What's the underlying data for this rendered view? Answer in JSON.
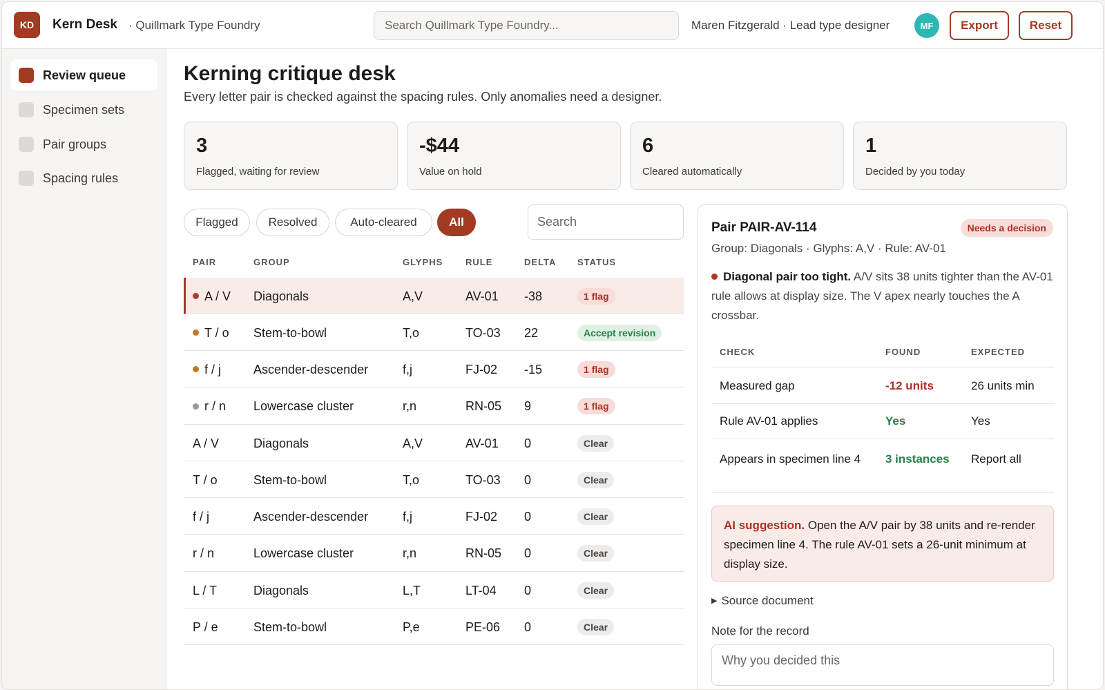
{
  "topbar": {
    "logo": "KD",
    "app_name": "Kern Desk",
    "org_name": "· Quillmark Type Foundry",
    "search_placeholder": "Search Quillmark Type Foundry...",
    "user_label": "Maren Fitzgerald · Lead type designer",
    "avatar": "MF",
    "export_label": "Export",
    "reset_label": "Reset"
  },
  "sidebar": {
    "items": [
      {
        "label": "Review queue",
        "active": true
      },
      {
        "label": "Specimen sets",
        "active": false
      },
      {
        "label": "Pair groups",
        "active": false
      },
      {
        "label": "Spacing rules",
        "active": false
      }
    ]
  },
  "page": {
    "title": "Kerning critique desk",
    "subtitle": "Every letter pair is checked against the spacing rules. Only anomalies need a designer."
  },
  "stats": [
    {
      "value": "3",
      "label": "Flagged, waiting for review"
    },
    {
      "value": "-$44",
      "label": "Value on hold"
    },
    {
      "value": "6",
      "label": "Cleared automatically"
    },
    {
      "value": "1",
      "label": "Decided by you today"
    }
  ],
  "filters": {
    "chips": [
      "Flagged",
      "Resolved",
      "Auto-cleared",
      "All"
    ],
    "active": "All",
    "search_placeholder": "Search"
  },
  "table": {
    "headers": [
      "PAIR",
      "GROUP",
      "GLYPHS",
      "RULE",
      "DELTA",
      "STATUS"
    ],
    "rows": [
      {
        "pair": "A / V",
        "group": "Diagonals",
        "glyphs": "A,V",
        "rule": "AV-01",
        "delta": "-38",
        "status": "1 flag",
        "status_kind": "flag",
        "dot": "#b03a2a",
        "selected": true
      },
      {
        "pair": "T / o",
        "group": "Stem-to-bowl",
        "glyphs": "T,o",
        "rule": "TO-03",
        "delta": "22",
        "status": "Accept revision",
        "status_kind": "accept",
        "dot": "#c07a2c",
        "selected": false
      },
      {
        "pair": "f / j",
        "group": "Ascender-descender",
        "glyphs": "f,j",
        "rule": "FJ-02",
        "delta": "-15",
        "status": "1 flag",
        "status_kind": "flag",
        "dot": "#c07a2c",
        "selected": false
      },
      {
        "pair": "r / n",
        "group": "Lowercase cluster",
        "glyphs": "r,n",
        "rule": "RN-05",
        "delta": "9",
        "status": "1 flag",
        "status_kind": "flag",
        "dot": "#9a98a6",
        "selected": false
      },
      {
        "pair": "A / V",
        "group": "Diagonals",
        "glyphs": "A,V",
        "rule": "AV-01",
        "delta": "0",
        "status": "Clear",
        "status_kind": "clear",
        "dot": "",
        "selected": false
      },
      {
        "pair": "T / o",
        "group": "Stem-to-bowl",
        "glyphs": "T,o",
        "rule": "TO-03",
        "delta": "0",
        "status": "Clear",
        "status_kind": "clear",
        "dot": "",
        "selected": false
      },
      {
        "pair": "f / j",
        "group": "Ascender-descender",
        "glyphs": "f,j",
        "rule": "FJ-02",
        "delta": "0",
        "status": "Clear",
        "status_kind": "clear",
        "dot": "",
        "selected": false
      },
      {
        "pair": "r / n",
        "group": "Lowercase cluster",
        "glyphs": "r,n",
        "rule": "RN-05",
        "delta": "0",
        "status": "Clear",
        "status_kind": "clear",
        "dot": "",
        "selected": false
      },
      {
        "pair": "L / T",
        "group": "Diagonals",
        "glyphs": "L,T",
        "rule": "LT-04",
        "delta": "0",
        "status": "Clear",
        "status_kind": "clear",
        "dot": "",
        "selected": false
      },
      {
        "pair": "P / e",
        "group": "Stem-to-bowl",
        "glyphs": "P,e",
        "rule": "PE-06",
        "delta": "0",
        "status": "Clear",
        "status_kind": "clear",
        "dot": "",
        "selected": false
      }
    ]
  },
  "detail": {
    "title": "Pair PAIR-AV-114",
    "badge": "Needs a decision",
    "meta": "Group: Diagonals · Glyphs: A,V · Rule: AV-01",
    "headline": "Diagonal pair too tight.",
    "description": "A/V sits 38 units tighter than the AV-01 rule allows at display size. The V apex nearly touches the A crossbar.",
    "check_headers": [
      "CHECK",
      "FOUND",
      "EXPECTED"
    ],
    "checks": [
      {
        "check": "Measured gap",
        "found": "-12 units",
        "found_kind": "red",
        "expected": "26 units min"
      },
      {
        "check": "Rule AV-01 applies",
        "found": "Yes",
        "found_kind": "green",
        "expected": "Yes"
      },
      {
        "check": "Appears in specimen line 4",
        "found": "3 instances",
        "found_kind": "green",
        "expected": "Report all"
      }
    ],
    "ai_label": "AI suggestion.",
    "ai_text": "Open the A/V pair by 38 units and re-render specimen line 4. The rule AV-01 sets a 26-unit minimum at display size.",
    "source_label": "Source document",
    "note_label": "Note for the record",
    "note_placeholder": "Why you decided this"
  },
  "colors": {
    "accent": "#a33a22",
    "flag_bg": "#f7dcd9",
    "flag_text": "#b03024",
    "accept_bg": "#dff1e4",
    "accept_text": "#2a7e47",
    "avatar": "#2bb8b2"
  },
  "icons": {
    "expand": "triangle-right-icon",
    "status_dot": "status-dot-icon"
  }
}
